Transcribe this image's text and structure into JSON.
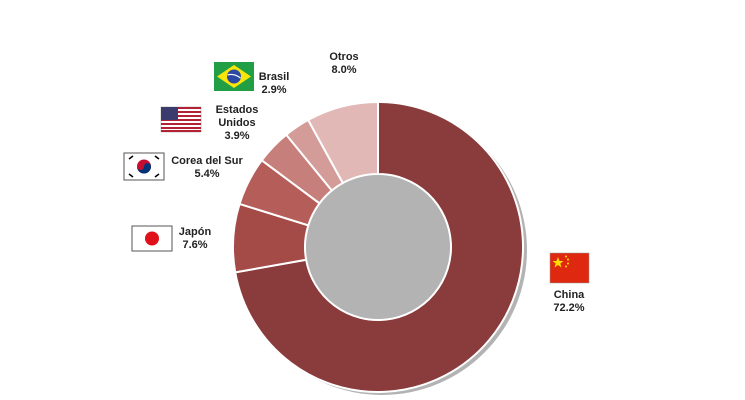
{
  "chart_data": {
    "type": "pie",
    "donut": true,
    "categories": [
      "China",
      "Japón",
      "Corea del Sur",
      "Estados Unidos",
      "Brasil",
      "Otros"
    ],
    "values": [
      72.2,
      7.6,
      5.4,
      3.9,
      2.9,
      8.0
    ],
    "value_labels": [
      "72.2%",
      "7.6%",
      "5.4%",
      "3.9%",
      "2.9%",
      "8.0%"
    ],
    "colors": [
      "#8a3b3b",
      "#a44a47",
      "#b55d59",
      "#c67f7b",
      "#d49c98",
      "#e2b8b6"
    ]
  }
}
